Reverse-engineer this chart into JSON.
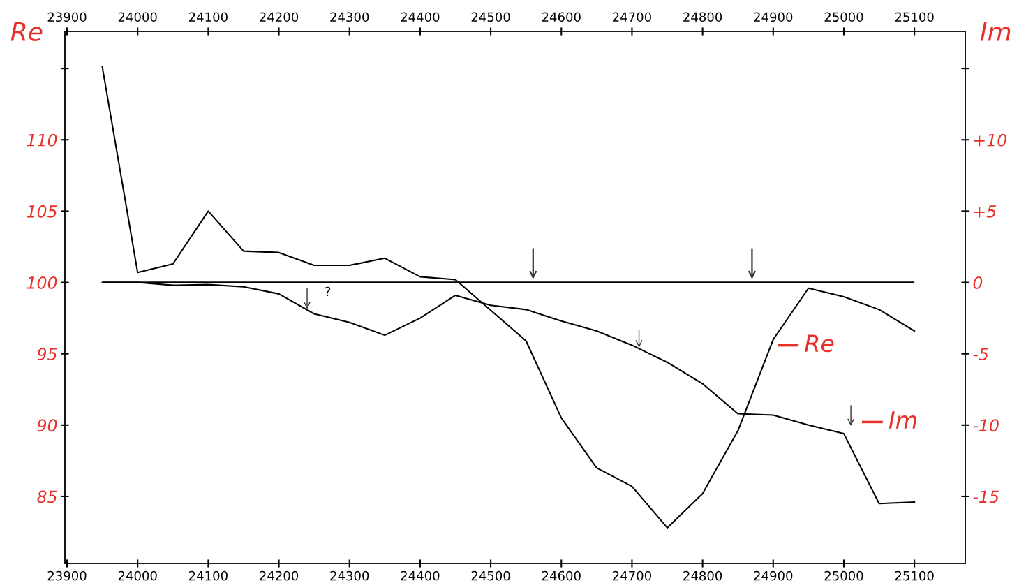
{
  "chart_data": {
    "type": "line",
    "ylabel": "Re",
    "y2label": "Im",
    "xlim": [
      23897,
      25172
    ],
    "xticks": [
      23900,
      24000,
      24100,
      24200,
      24300,
      24400,
      24500,
      24600,
      24700,
      24800,
      24900,
      25000,
      25100
    ],
    "x2lim": [
      23897,
      25172
    ],
    "x2ticks": [
      23900,
      24000,
      24100,
      24200,
      24300,
      24400,
      24500,
      24600,
      24700,
      24800,
      24900,
      25000,
      25100
    ],
    "ylim": [
      80.3,
      117.6
    ],
    "yticks": [
      85,
      90,
      95,
      100,
      105,
      110,
      {
        "value": 115,
        "label": null
      }
    ],
    "y2lim": [
      -19.7,
      17.6
    ],
    "y2ticks": [
      {
        "value": -15,
        "label": "-15"
      },
      {
        "value": -10,
        "label": "-10"
      },
      {
        "value": -5,
        "label": "-5"
      },
      {
        "value": 0,
        "label": "0"
      },
      {
        "value": 5,
        "label": "+5"
      },
      {
        "value": 10,
        "label": "+10"
      },
      {
        "value": 15,
        "label": null
      }
    ],
    "grid": false,
    "legend": false,
    "marker": "none",
    "line_style": "solid",
    "series": [
      {
        "name": "Re",
        "color": "#000000",
        "x": [
          23950,
          24000,
          24050,
          24100,
          24150,
          24200,
          24250,
          24300,
          24350,
          24400,
          24450,
          24550,
          24600,
          24650,
          24700,
          24750,
          24800,
          24850,
          24900,
          24950,
          25000,
          25050,
          25100
        ],
        "values": [
          115.1,
          100.7,
          101.3,
          105.0,
          102.2,
          102.1,
          101.2,
          101.2,
          101.7,
          100.4,
          100.2,
          95.9,
          90.5,
          87.0,
          85.7,
          82.8,
          85.2,
          89.6,
          96.0,
          99.6,
          99.0,
          98.1,
          96.6
        ]
      },
      {
        "name": "Im",
        "color": "#000000",
        "axis": "y2",
        "x": [
          23950,
          24000,
          24050,
          24100,
          24150,
          24200,
          24250,
          24300,
          24350,
          24400,
          24450,
          24500,
          24550,
          24600,
          24650,
          24700,
          24750,
          24800,
          24850,
          24900,
          24950,
          25000,
          25050,
          25100
        ],
        "values": [
          0,
          0,
          -0.2,
          -0.15,
          -0.3,
          -0.8,
          -2.2,
          -2.8,
          -3.7,
          -2.5,
          -0.9,
          -1.6,
          -1.9,
          -2.7,
          -3.4,
          -4.4,
          -5.6,
          -7.1,
          -9.2,
          -9.3,
          -10.0,
          -10.6,
          -15.5,
          -15.4
        ]
      }
    ],
    "ref_lines": [
      {
        "axis": "y",
        "value": 100,
        "color": "#000000",
        "line_style": "solid"
      }
    ],
    "annotations": [
      "?"
    ]
  }
}
